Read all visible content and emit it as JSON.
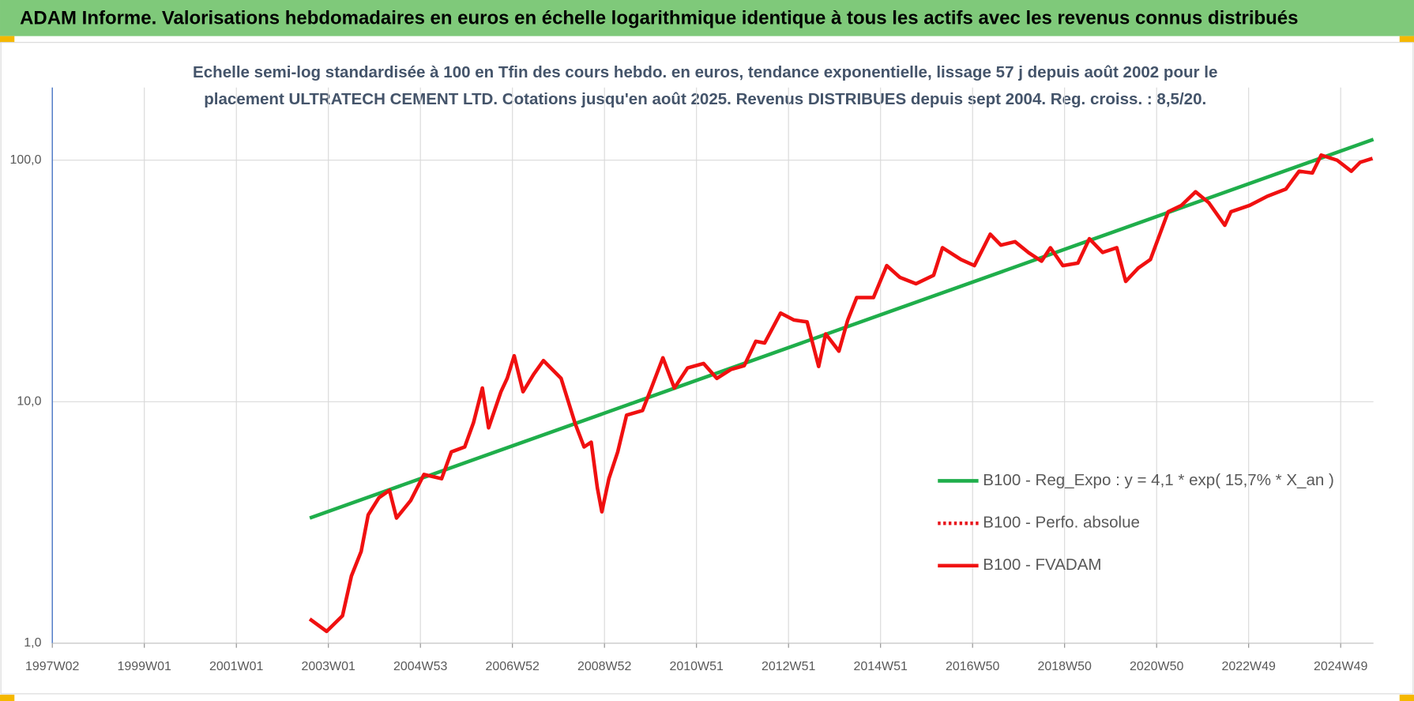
{
  "chart_data": {
    "type": "line",
    "title": "ADAM Informe. Valorisations hebdomadaires en euros en échelle logarithmique identique à tous les actifs avec les revenus connus distribués",
    "subtitle": [
      "Echelle semi-log standardisée à 100 en Tfin des cours hebdo. en euros, tendance exponentielle, lissage 57 j depuis août 2002 pour le",
      "placement ULTRATECH CEMENT LTD. Cotations jusqu'en août 2025. Revenus DISTRIBUES depuis sept 2004. Reg. croiss. : 8,5/20."
    ],
    "log_y": true,
    "grid": true,
    "xlim": [
      0,
      1493
    ],
    "xticks": [
      {
        "value": 0,
        "label": "1997W02"
      },
      {
        "value": 104,
        "label": "1999W01"
      },
      {
        "value": 208,
        "label": "2001W01"
      },
      {
        "value": 312,
        "label": "2003W01"
      },
      {
        "value": 416,
        "label": "2004W53"
      },
      {
        "value": 520,
        "label": "2006W52"
      },
      {
        "value": 624,
        "label": "2008W52"
      },
      {
        "value": 728,
        "label": "2010W51"
      },
      {
        "value": 832,
        "label": "2012W51"
      },
      {
        "value": 936,
        "label": "2014W51"
      },
      {
        "value": 1040,
        "label": "2016W50"
      },
      {
        "value": 1144,
        "label": "2018W50"
      },
      {
        "value": 1248,
        "label": "2020W50"
      },
      {
        "value": 1352,
        "label": "2022W49"
      },
      {
        "value": 1456,
        "label": "2024W49"
      }
    ],
    "ylim": [
      1,
      200
    ],
    "yticks": [
      {
        "value": 1,
        "label": "1,0"
      },
      {
        "value": 10,
        "label": "10,0"
      },
      {
        "value": 100,
        "label": "100,0"
      }
    ],
    "legend": "right",
    "series": [
      {
        "name": "B100 - Reg_Expo : y = 4,1 * exp( 15,7% *  X_an )",
        "color": "#1fae4b",
        "style": "solid",
        "x": [
          291,
          1493
        ],
        "values": [
          3.3,
          122
        ]
      },
      {
        "name": "B100 - Perfo. absolue",
        "color": "#e8141b",
        "style": "dotted",
        "x": [],
        "values": []
      },
      {
        "name": "B100 - FVADAM",
        "color": "#f01010",
        "style": "solid",
        "x": [
          291,
          310,
          328,
          338,
          349,
          357,
          369,
          381,
          389,
          405,
          420,
          440,
          451,
          466,
          476,
          486,
          493,
          507,
          514,
          522,
          532,
          544,
          555,
          565,
          575,
          591,
          601,
          609,
          616,
          621,
          629,
          639,
          649,
          667,
          677,
          690,
          703,
          718,
          736,
          751,
          767,
          782,
          795,
          805,
          823,
          838,
          853,
          866,
          874,
          889,
          899,
          909,
          928,
          943,
          958,
          976,
          996,
          1006,
          1027,
          1042,
          1060,
          1072,
          1088,
          1103,
          1118,
          1128,
          1142,
          1159,
          1172,
          1187,
          1203,
          1213,
          1227,
          1241,
          1261,
          1276,
          1292,
          1307,
          1325,
          1332,
          1353,
          1373,
          1394,
          1409,
          1424,
          1434,
          1452,
          1468,
          1478,
          1492
        ],
        "values": [
          1.26,
          1.12,
          1.3,
          1.9,
          2.4,
          3.4,
          4.0,
          4.3,
          3.3,
          3.9,
          5.0,
          4.8,
          6.2,
          6.5,
          8.2,
          11.4,
          7.8,
          11,
          12.5,
          15.5,
          11,
          13,
          14.8,
          13.6,
          12.5,
          8.1,
          6.5,
          6.8,
          4.4,
          3.5,
          4.8,
          6.2,
          8.8,
          9.2,
          11.4,
          15.2,
          11.4,
          13.8,
          14.4,
          12.5,
          13.6,
          14.1,
          17.8,
          17.5,
          23.3,
          21.8,
          21.4,
          14,
          19.1,
          16.2,
          21.8,
          27,
          27,
          36.6,
          32.7,
          30.8,
          33.4,
          43.4,
          38.8,
          36.6,
          49.4,
          44.5,
          46,
          41.5,
          38.2,
          43.4,
          36.6,
          37.5,
          47.3,
          41.5,
          43.4,
          31.5,
          35.7,
          38.8,
          61.2,
          65,
          74,
          66.7,
          53.8,
          61.2,
          65,
          70.9,
          75.9,
          90,
          88.6,
          105,
          100,
          90,
          98,
          101.7
        ]
      }
    ]
  }
}
